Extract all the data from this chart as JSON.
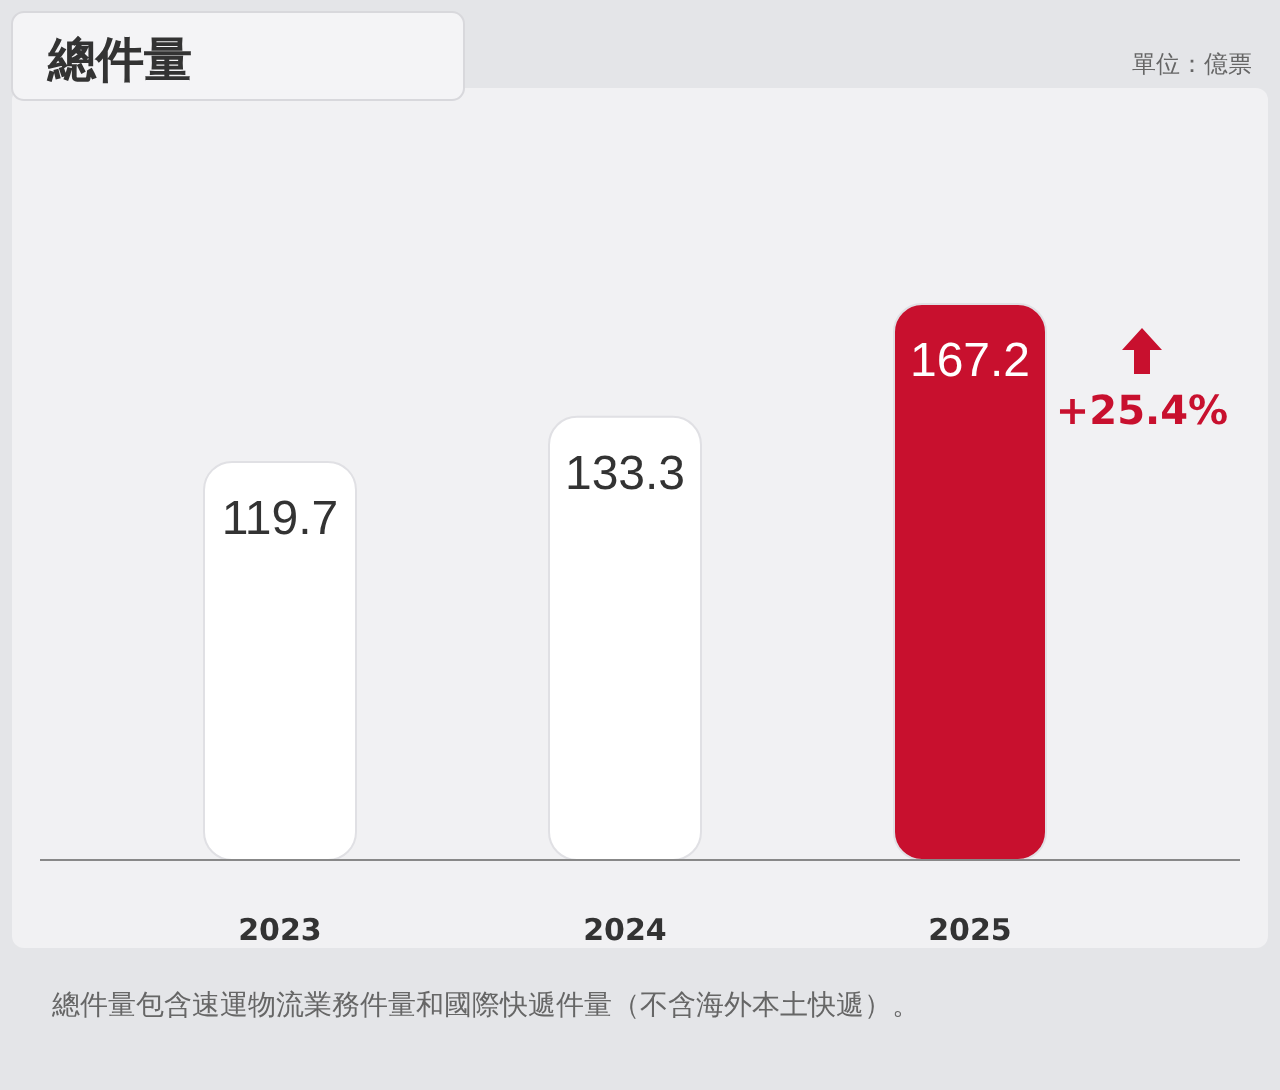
{
  "chart_data": {
    "type": "bar",
    "title": "總件量",
    "categories": [
      "2023",
      "2024",
      "2025"
    ],
    "values": [
      119.7,
      133.3,
      167.2
    ],
    "colors": [
      "#ffffff",
      "#ffffff",
      "#c8102e"
    ],
    "data_labels": true,
    "annotations": [
      "+25.4%",
      "單位：億票",
      "總件量包含速運物流業務件量和國際快遞件量（不含海外本土快遞）。"
    ]
  }
}
